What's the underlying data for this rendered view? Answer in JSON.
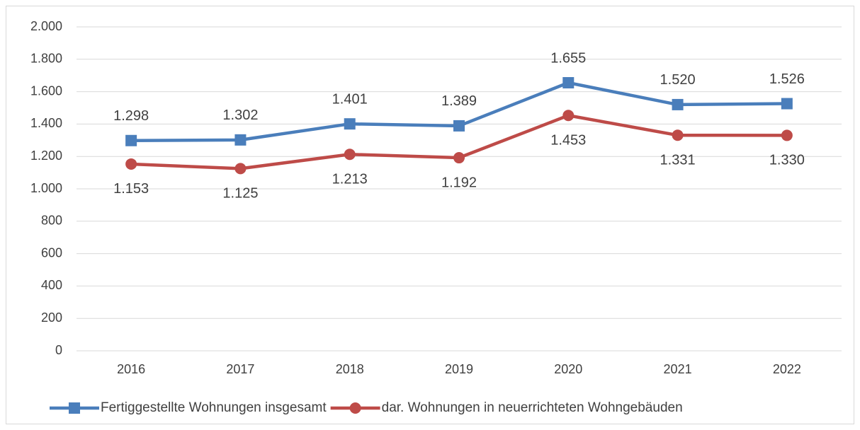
{
  "chart_data": {
    "type": "line",
    "categories": [
      "2016",
      "2017",
      "2018",
      "2019",
      "2020",
      "2021",
      "2022"
    ],
    "series": [
      {
        "name": "Fertiggestellte Wohnungen insgesamt",
        "color": "#4a7ebb",
        "marker": "square",
        "values": [
          1298,
          1302,
          1401,
          1389,
          1655,
          1520,
          1526
        ],
        "value_labels": [
          "1.298",
          "1.302",
          "1.401",
          "1.389",
          "1.655",
          "1.520",
          "1.526"
        ]
      },
      {
        "name": "dar. Wohnungen in neuerrichteten Wohngebäuden",
        "color": "#be4b48",
        "marker": "circle",
        "values": [
          1153,
          1125,
          1213,
          1192,
          1453,
          1331,
          1330
        ],
        "value_labels": [
          "1.153",
          "1.125",
          "1.213",
          "1.192",
          "1.453",
          "1.331",
          "1.330"
        ]
      }
    ],
    "ylim": [
      0,
      2000
    ],
    "yticks": [
      0,
      200,
      400,
      600,
      800,
      {
        "value": 1000,
        "label": "1.000"
      },
      {
        "value": 1200,
        "label": "1.200"
      },
      {
        "value": 1400,
        "label": "1.400"
      },
      {
        "value": 1600,
        "label": "1.600"
      },
      {
        "value": 1800,
        "label": "1.800"
      },
      {
        "value": 2000,
        "label": "2.000"
      }
    ],
    "grid": true,
    "legend": "bottom"
  }
}
